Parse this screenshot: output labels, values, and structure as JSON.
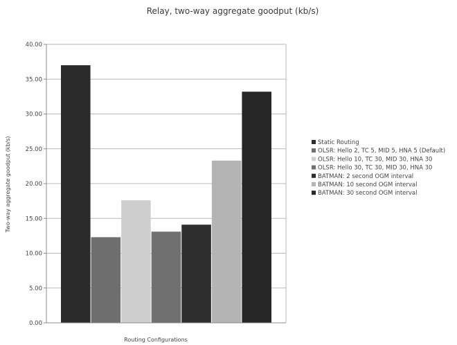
{
  "chart_data": {
    "type": "bar",
    "title": "Relay, two-way aggregate goodput (kb/s)",
    "xlabel": "Routing Configurations",
    "ylabel": "Two-way aggregate goodput (kb/s)",
    "ylim": [
      0,
      40
    ],
    "yticks": [
      "0.00",
      "5.00",
      "10.00",
      "15.00",
      "20.00",
      "25.00",
      "30.00",
      "35.00",
      "40.00"
    ],
    "grid": "horizontal",
    "legend_position": "right",
    "series": [
      {
        "name": "Static Routing",
        "value": 37.0,
        "color": "#2b2b2b"
      },
      {
        "name": "OLSR: Hello 2, TC 5, MID 5, HNA 5 (Default)",
        "value": 12.3,
        "color": "#6e6e6e"
      },
      {
        "name": "OLSR: Hello 10, TC 30, MID 30, HNA 30",
        "value": 17.6,
        "color": "#cfcfcf"
      },
      {
        "name": "OLSR: Hello 30, TC 30, MID 30, HNA 30",
        "value": 13.1,
        "color": "#707070"
      },
      {
        "name": "BATMAN: 2 second OGM interval",
        "value": 14.1,
        "color": "#2e2e2e"
      },
      {
        "name": "BATMAN: 10 second OGM interval",
        "value": 23.3,
        "color": "#b4b4b4"
      },
      {
        "name": "BATMAN: 30 second OGM interval",
        "value": 33.2,
        "color": "#262626"
      }
    ]
  }
}
